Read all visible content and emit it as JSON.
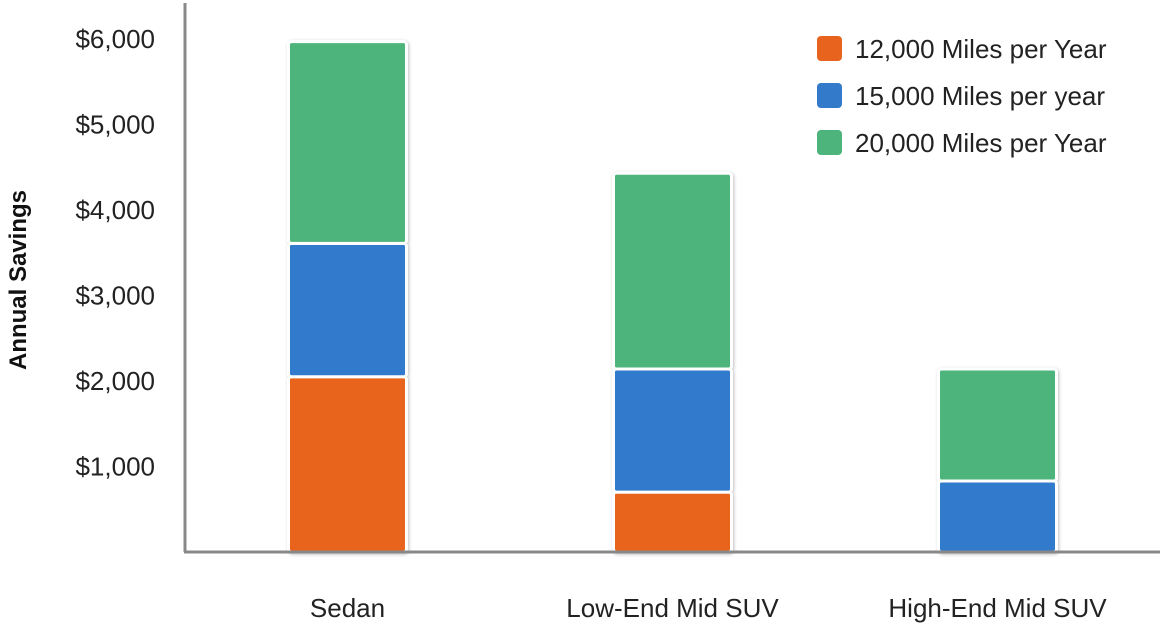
{
  "chart_data": {
    "type": "bar",
    "stacked": true,
    "title": "",
    "xlabel": "",
    "ylabel": "Annual Savings",
    "ylim": [
      0,
      6500
    ],
    "yticks": [
      1000,
      2000,
      3000,
      4000,
      5000,
      6000
    ],
    "ytick_labels": [
      "$1,000",
      "$2,000",
      "$3,000",
      "$4,000",
      "$5,000",
      "$6,000"
    ],
    "categories": [
      "Sedan",
      "Low-End Mid SUV",
      "High-End Mid SUV"
    ],
    "series": [
      {
        "name": "12,000 Miles per Year",
        "color": "#e8641e",
        "values": [
          2050,
          700,
          0
        ]
      },
      {
        "name": "15,000 Miles per year",
        "color": "#337acb",
        "values": [
          1560,
          1440,
          830
        ]
      },
      {
        "name": "20,000 Miles per Year",
        "color": "#4db47b",
        "values": [
          2360,
          2290,
          1310
        ]
      }
    ],
    "grid": false,
    "legend_position": "top-right"
  }
}
